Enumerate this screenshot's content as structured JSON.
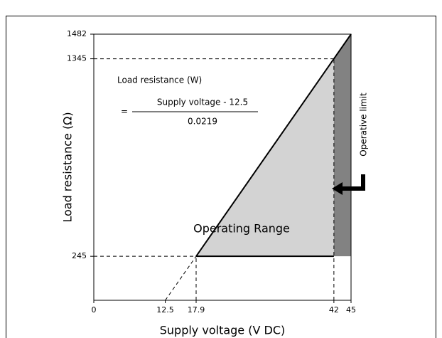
{
  "chart_data": {
    "type": "range",
    "xlabel": "Supply voltage (V DC)",
    "ylabel": "Load resistance (Ω)",
    "formula": {
      "lhs": "Load resistance (W)",
      "eq": "=",
      "numerator": "Supply voltage - 12.5",
      "denominator": "0.0219"
    },
    "region_label": "Operating Range",
    "limit_label": "Operative limit",
    "x": [
      12.5,
      17.9,
      42,
      45
    ],
    "values": [
      0,
      245,
      1345,
      1482
    ],
    "xlim": [
      0,
      45
    ],
    "ylim": [
      0,
      1482
    ],
    "xticks": [
      0,
      12.5,
      17.9,
      42,
      45
    ],
    "yticks": [
      245,
      1345,
      1482
    ],
    "colors": {
      "range": "#d3d3d3",
      "limit": "#828282",
      "line": "#000000"
    }
  }
}
